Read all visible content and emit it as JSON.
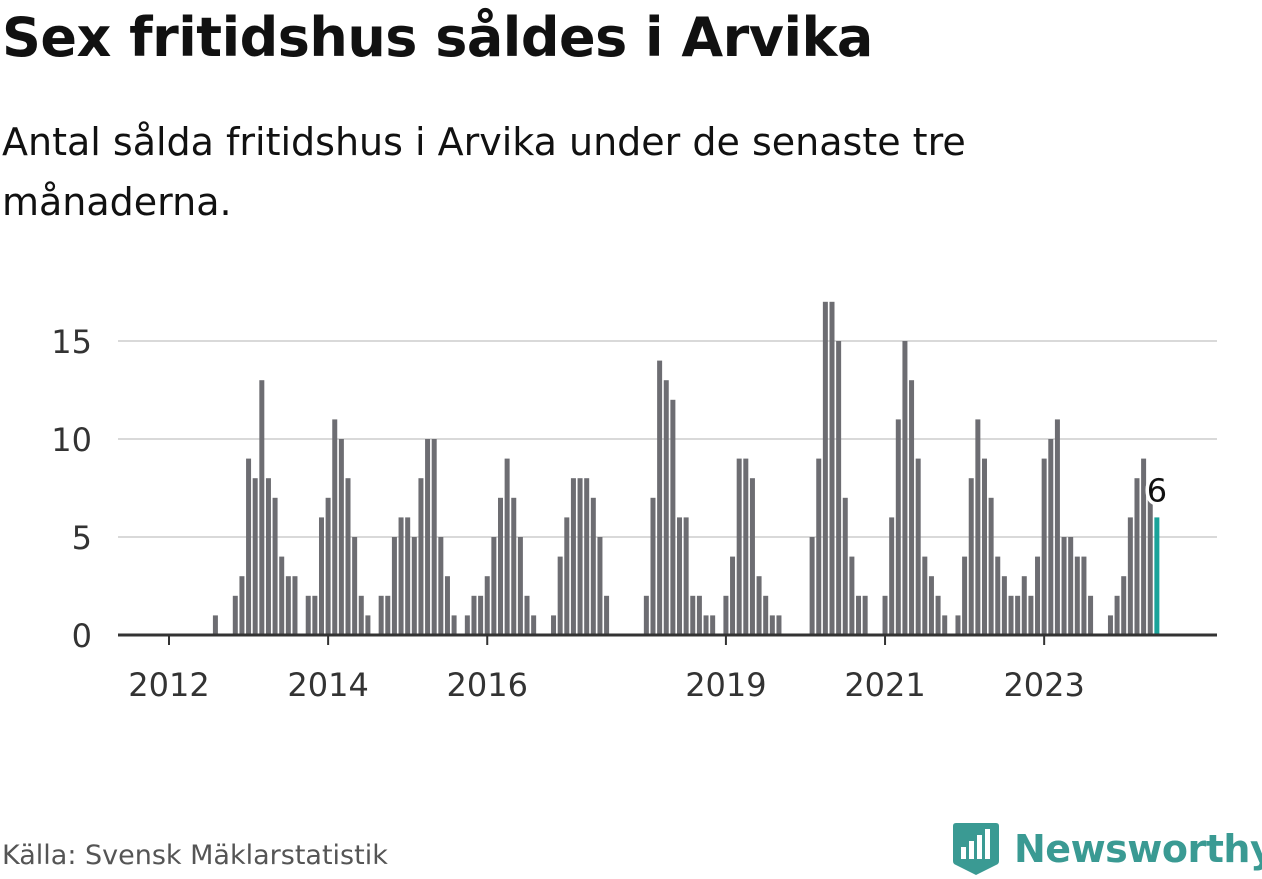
{
  "title": "Sex fritidshus såldes i Arvika",
  "subtitle": "Antal sålda fritidshus i Arvika under de senaste tre månaderna.",
  "source": "Källa: Svensk Mäklarstatistik",
  "brand": {
    "name": "Newsworthy",
    "icon": "newsworthy-logo-icon",
    "color": "#3a9a93"
  },
  "colors": {
    "bar": "#6d6d72",
    "highlight": "#1aa39a",
    "grid": "#d9d9d9",
    "axis": "#333333"
  },
  "chart_data": {
    "type": "bar",
    "title": "Sex fritidshus såldes i Arvika",
    "xlabel": "",
    "ylabel": "",
    "ylim": [
      0,
      17
    ],
    "yticks": [
      0,
      5,
      10,
      15
    ],
    "xtick_labels": [
      "2012",
      "2014",
      "2016",
      "2019",
      "2021",
      "2023"
    ],
    "grid": true,
    "series": [
      {
        "values": [
          0,
          0,
          0,
          0,
          0,
          0,
          0,
          1,
          0,
          0,
          2,
          3,
          9,
          8,
          13,
          8,
          7,
          4,
          3,
          3,
          0,
          2,
          2,
          6,
          7,
          11,
          10,
          8,
          5,
          2,
          1,
          0,
          2,
          2,
          5,
          6,
          6,
          5,
          8,
          10,
          10,
          5,
          3,
          1,
          0,
          1,
          2,
          2,
          3,
          5,
          7,
          9,
          7,
          5,
          2,
          1,
          0,
          0,
          1,
          4,
          6,
          8,
          8,
          8,
          7,
          5,
          2,
          0,
          0,
          0,
          0,
          0,
          2,
          7,
          14,
          13,
          12,
          6,
          6,
          2,
          2,
          1,
          1,
          0,
          2,
          4,
          9,
          9,
          8,
          3,
          2,
          1,
          1,
          0,
          0,
          0,
          0,
          5,
          9,
          17,
          17,
          15,
          7,
          4,
          2,
          2,
          0,
          0,
          2,
          6,
          11,
          15,
          13,
          9,
          4,
          3,
          2,
          1,
          0,
          1,
          4,
          8,
          11,
          9,
          7,
          4,
          3,
          2,
          2,
          3,
          2,
          4,
          9,
          10,
          11,
          5,
          5,
          4,
          4,
          2,
          0,
          0,
          1,
          2,
          3,
          6,
          8,
          9,
          7,
          6
        ]
      }
    ],
    "highlight": {
      "index": 149,
      "value": 6,
      "label": "6"
    }
  }
}
